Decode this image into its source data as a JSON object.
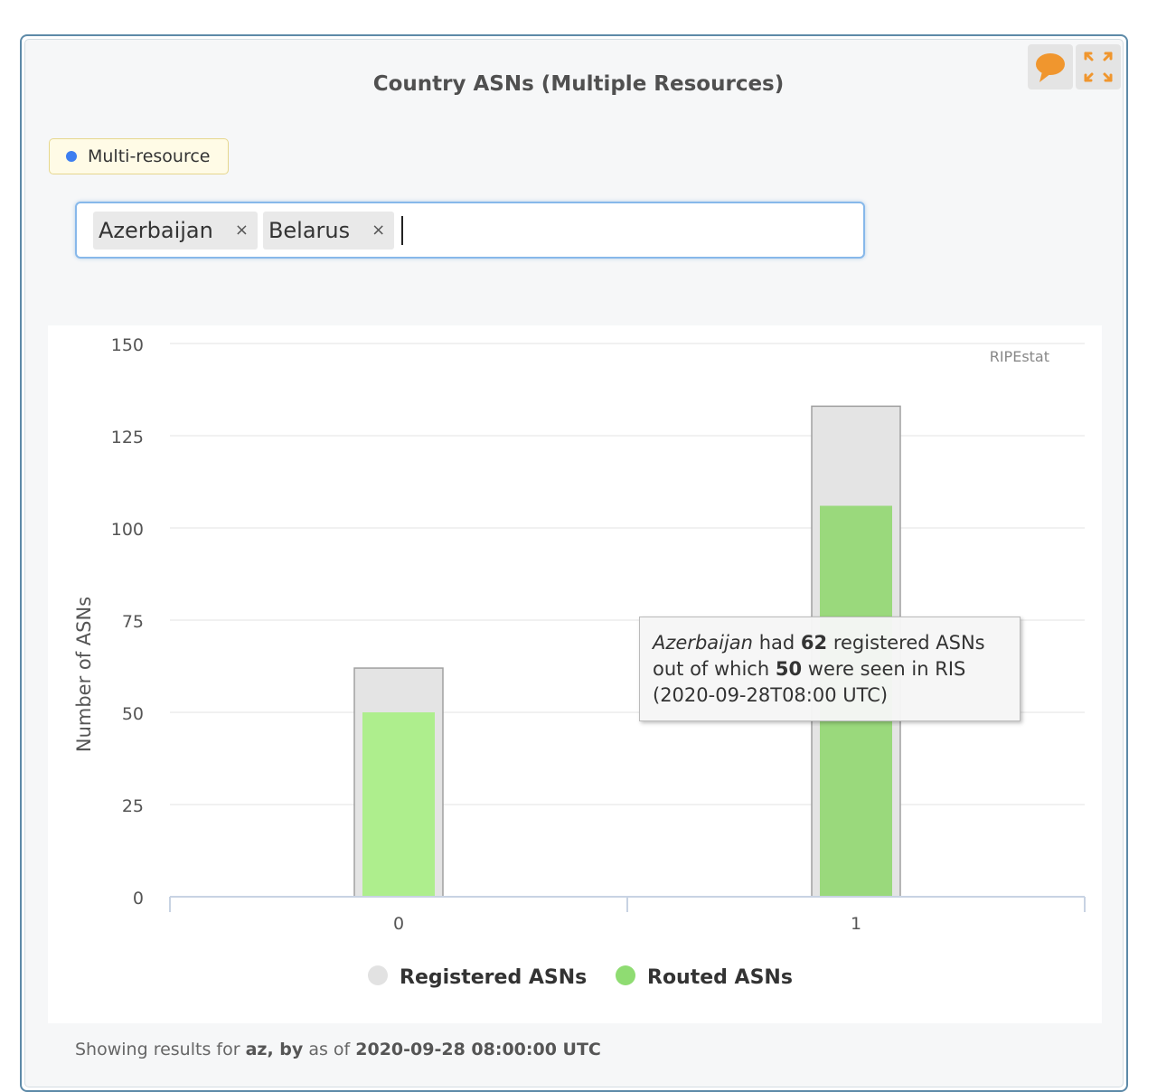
{
  "widget": {
    "title": "Country ASNs (Multiple Resources)",
    "feedback_icon": "speech-bubble-icon",
    "fullscreen_icon": "expand-arrows-icon"
  },
  "mode_chip": {
    "label": "Multi-resource",
    "dot_color": "#3d7ef0"
  },
  "resource_input": {
    "tags": [
      {
        "label": "Azerbaijan",
        "remove": "×"
      },
      {
        "label": "Belarus",
        "remove": "×"
      }
    ],
    "value": ""
  },
  "chart_data": {
    "type": "bar",
    "categories": [
      "0",
      "1"
    ],
    "series": [
      {
        "name": "Registered ASNs",
        "values": [
          62,
          133
        ],
        "color": "#e4e4e4"
      },
      {
        "name": "Routed ASNs",
        "values": [
          50,
          106
        ],
        "color": "#a6e68a"
      }
    ],
    "title": "",
    "xlabel": "",
    "ylabel": "Number of ASNs",
    "ylim": [
      0,
      150
    ],
    "yticks": [
      0,
      25,
      50,
      75,
      100,
      125,
      150
    ],
    "grid": true,
    "legend": "bottom-center",
    "credit": "RIPEstat",
    "tooltip": {
      "country": "Azerbaijan",
      "text_had": "had",
      "registered": "62",
      "text_registered": "registered ASNs",
      "text_out_of": "out of which",
      "routed": "50",
      "text_seen": "were seen in RIS",
      "timestamp": "(2020-09-28T08:00 UTC)"
    }
  },
  "footer": {
    "prefix": "Showing results for",
    "resources": "az, by",
    "middle": "as of",
    "datetime": "2020-09-28 08:00:00 UTC"
  }
}
